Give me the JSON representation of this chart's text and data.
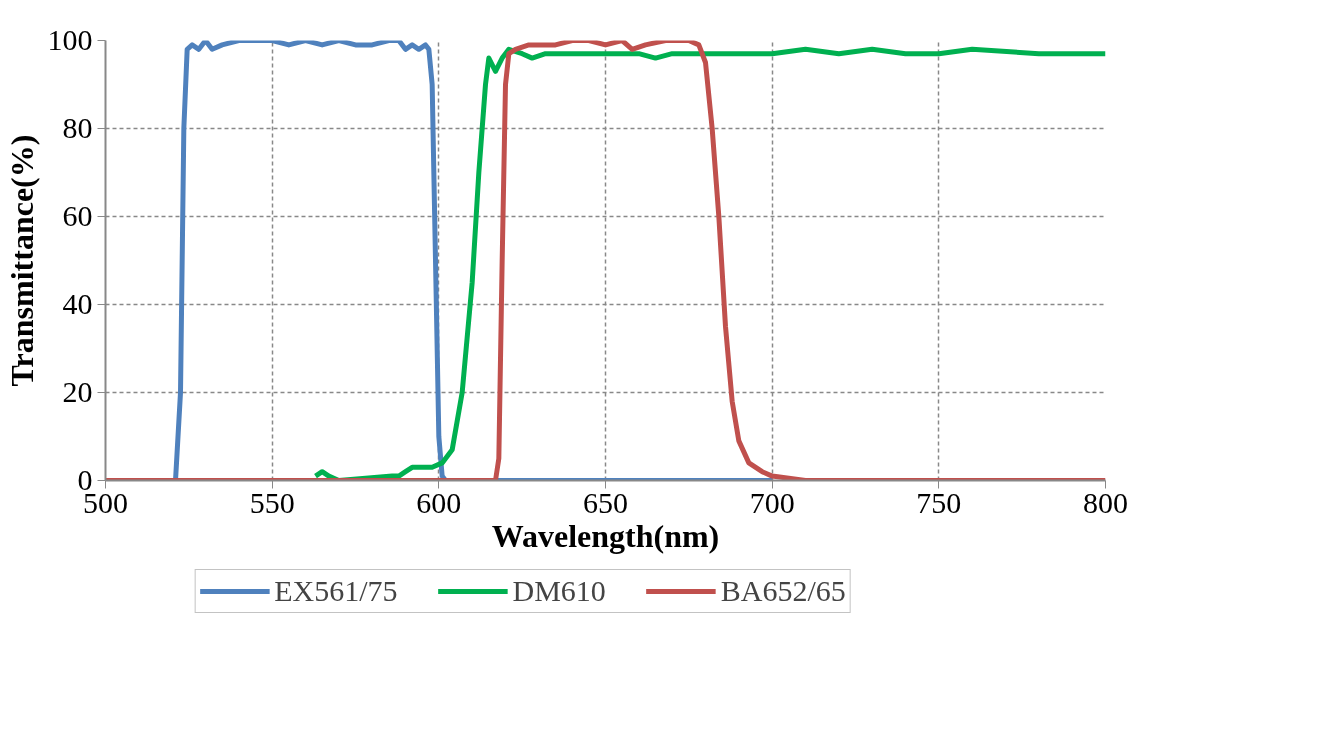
{
  "chart_data": {
    "type": "line",
    "xlabel": "Wavelength(nm)",
    "ylabel": "Transmittance(%)",
    "xlim": [
      500,
      800
    ],
    "ylim": [
      0,
      100
    ],
    "xticks": [
      500,
      550,
      600,
      650,
      700,
      750,
      800
    ],
    "yticks": [
      0,
      20,
      40,
      60,
      80,
      100
    ],
    "grid": true,
    "legend": "bottom",
    "marker": "none",
    "line_style": "solid",
    "series": [
      {
        "name": "EX561/75",
        "color": "#4f81bd",
        "x": [
          500,
          521,
          522.5,
          523.5,
          524.5,
          526,
          528,
          530,
          532,
          535,
          540,
          550,
          555,
          560,
          565,
          570,
          575,
          580,
          585,
          588,
          590,
          592,
          594,
          596,
          597,
          598,
          599,
          600,
          601,
          602,
          605,
          650,
          700
        ],
        "values": [
          0,
          0,
          20,
          80,
          98,
          99,
          98,
          100,
          98,
          99,
          100,
          100,
          99,
          100,
          99,
          100,
          99,
          99,
          100,
          100,
          98,
          99,
          98,
          99,
          98,
          90,
          50,
          10,
          1,
          0,
          0,
          0,
          0
        ]
      },
      {
        "name": "DM610",
        "color": "#00b050",
        "x": [
          563,
          565,
          567,
          570,
          586,
          588,
          590,
          592,
          595,
          598,
          601,
          604,
          607,
          610,
          612,
          614,
          615,
          617,
          619,
          621,
          625,
          628,
          632,
          640,
          650,
          660,
          665,
          670,
          680,
          690,
          700,
          710,
          720,
          730,
          740,
          750,
          760,
          780,
          800
        ],
        "values": [
          1,
          2,
          1,
          null,
          1,
          1,
          2,
          3,
          3,
          3,
          4,
          7,
          20,
          45,
          70,
          90,
          96,
          93,
          96,
          98,
          97,
          96,
          97,
          97,
          97,
          97,
          96,
          97,
          97,
          97,
          97,
          98,
          97,
          98,
          97,
          97,
          98,
          97,
          97
        ]
      },
      {
        "name": "BA652/65",
        "color": "#c0504d",
        "x": [
          500,
          600,
          617,
          618,
          619,
          620,
          621,
          623,
          627,
          635,
          640,
          645,
          650,
          655,
          658,
          662,
          668,
          675,
          678,
          680,
          682,
          684,
          686,
          688,
          690,
          693,
          697,
          700,
          710,
          800
        ],
        "values": [
          0,
          0,
          0,
          5,
          50,
          90,
          97,
          98,
          99,
          99,
          100,
          100,
          99,
          100,
          98,
          99,
          100,
          100,
          99,
          95,
          80,
          60,
          35,
          18,
          9,
          4,
          2,
          1,
          0,
          0
        ]
      }
    ]
  }
}
